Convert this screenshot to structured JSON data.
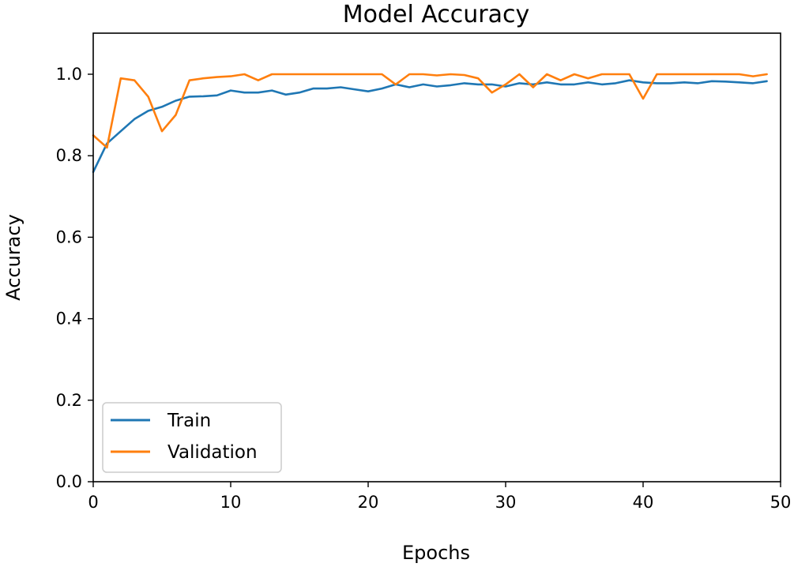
{
  "chart_data": {
    "type": "line",
    "title": "Model Accuracy",
    "xlabel": "Epochs",
    "ylabel": "Accuracy",
    "xlim": [
      0,
      50
    ],
    "ylim": [
      0,
      1.1
    ],
    "xticks": [
      0,
      10,
      20,
      30,
      40,
      50
    ],
    "yticks": [
      0.0,
      0.2,
      0.4,
      0.6,
      0.8,
      1.0
    ],
    "x_tick_labels": [
      "0",
      "10",
      "20",
      "30",
      "40",
      "50"
    ],
    "y_tick_labels": [
      "0.0",
      "0.2",
      "0.4",
      "0.6",
      "0.8",
      "1.0"
    ],
    "grid": false,
    "legend_position": "lower-left",
    "x": [
      0,
      1,
      2,
      3,
      4,
      5,
      6,
      7,
      8,
      9,
      10,
      11,
      12,
      13,
      14,
      15,
      16,
      17,
      18,
      19,
      20,
      21,
      22,
      23,
      24,
      25,
      26,
      27,
      28,
      29,
      30,
      31,
      32,
      33,
      34,
      35,
      36,
      37,
      38,
      39,
      40,
      41,
      42,
      43,
      44,
      45,
      46,
      47,
      48,
      49
    ],
    "series": [
      {
        "name": "Train",
        "color": "#1f77b4",
        "values": [
          0.76,
          0.83,
          0.86,
          0.89,
          0.91,
          0.92,
          0.935,
          0.945,
          0.946,
          0.948,
          0.96,
          0.955,
          0.955,
          0.96,
          0.95,
          0.955,
          0.965,
          0.965,
          0.968,
          0.963,
          0.958,
          0.965,
          0.975,
          0.968,
          0.975,
          0.97,
          0.973,
          0.978,
          0.975,
          0.975,
          0.97,
          0.978,
          0.975,
          0.98,
          0.975,
          0.975,
          0.98,
          0.975,
          0.978,
          0.985,
          0.98,
          0.978,
          0.978,
          0.98,
          0.978,
          0.983,
          0.982,
          0.98,
          0.978,
          0.983
        ]
      },
      {
        "name": "Validation",
        "color": "#ff7f0e",
        "values": [
          0.85,
          0.82,
          0.99,
          0.985,
          0.945,
          0.86,
          0.9,
          0.985,
          0.99,
          0.993,
          0.995,
          1.0,
          0.985,
          1.0,
          1.0,
          1.0,
          1.0,
          1.0,
          1.0,
          1.0,
          1.0,
          1.0,
          0.975,
          1.0,
          1.0,
          0.997,
          1.0,
          0.998,
          0.99,
          0.955,
          0.975,
          1.0,
          0.968,
          1.0,
          0.985,
          1.0,
          0.99,
          1.0,
          1.0,
          1.0,
          0.94,
          1.0,
          1.0,
          1.0,
          1.0,
          1.0,
          1.0,
          1.0,
          0.995,
          1.0
        ]
      }
    ]
  }
}
